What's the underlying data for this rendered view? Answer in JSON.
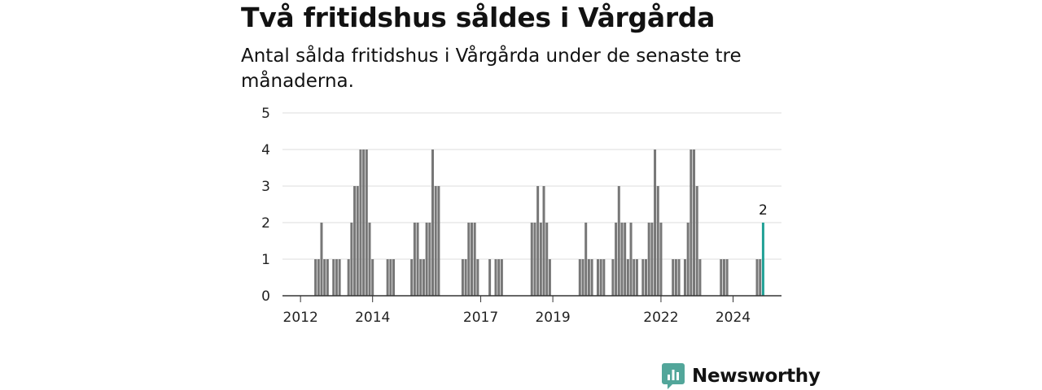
{
  "colors": {
    "bar": "#777777",
    "highlight": "#21a196",
    "grid": "#dddddd",
    "axis": "#333333",
    "brand": "#52a69a"
  },
  "brand": {
    "name": "Newsworthy",
    "icon": "newsworthy-logo-icon"
  },
  "chart_data": {
    "type": "bar",
    "title": "Två fritidshus såldes i Vårgårda",
    "subtitle": "Antal sålda fritidshus i Vårgårda under de senaste tre månaderna.",
    "xlabel": "",
    "ylabel": "",
    "ylim": [
      0,
      5
    ],
    "y_ticks": [
      "0",
      "1",
      "2",
      "3",
      "4",
      "5"
    ],
    "x_ticks": [
      {
        "label": "2012",
        "x": "2012-01"
      },
      {
        "label": "2014",
        "x": "2014-01"
      },
      {
        "label": "2017",
        "x": "2017-01"
      },
      {
        "label": "2019",
        "x": "2019-01"
      },
      {
        "label": "2022",
        "x": "2022-01"
      },
      {
        "label": "2024",
        "x": "2024-01"
      }
    ],
    "grid": true,
    "series": [
      {
        "values": [
          [
            "2012-06",
            1
          ],
          [
            "2012-07",
            1
          ],
          [
            "2012-08",
            2
          ],
          [
            "2012-09",
            1
          ],
          [
            "2012-10",
            1
          ],
          [
            "2012-12",
            1
          ],
          [
            "2013-01",
            1
          ],
          [
            "2013-02",
            1
          ],
          [
            "2013-05",
            1
          ],
          [
            "2013-06",
            2
          ],
          [
            "2013-07",
            3
          ],
          [
            "2013-08",
            3
          ],
          [
            "2013-09",
            4
          ],
          [
            "2013-10",
            4
          ],
          [
            "2013-11",
            4
          ],
          [
            "2013-12",
            2
          ],
          [
            "2014-01",
            1
          ],
          [
            "2014-06",
            1
          ],
          [
            "2014-07",
            1
          ],
          [
            "2014-08",
            1
          ],
          [
            "2015-02",
            1
          ],
          [
            "2015-03",
            2
          ],
          [
            "2015-04",
            2
          ],
          [
            "2015-05",
            1
          ],
          [
            "2015-06",
            1
          ],
          [
            "2015-07",
            2
          ],
          [
            "2015-08",
            2
          ],
          [
            "2015-09",
            4
          ],
          [
            "2015-10",
            3
          ],
          [
            "2015-11",
            3
          ],
          [
            "2016-07",
            1
          ],
          [
            "2016-08",
            1
          ],
          [
            "2016-09",
            2
          ],
          [
            "2016-10",
            2
          ],
          [
            "2016-11",
            2
          ],
          [
            "2016-12",
            1
          ],
          [
            "2017-04",
            1
          ],
          [
            "2017-06",
            1
          ],
          [
            "2017-07",
            1
          ],
          [
            "2017-08",
            1
          ],
          [
            "2018-06",
            2
          ],
          [
            "2018-07",
            2
          ],
          [
            "2018-08",
            3
          ],
          [
            "2018-09",
            2
          ],
          [
            "2018-10",
            3
          ],
          [
            "2018-11",
            2
          ],
          [
            "2018-12",
            1
          ],
          [
            "2019-10",
            1
          ],
          [
            "2019-11",
            1
          ],
          [
            "2019-12",
            2
          ],
          [
            "2020-01",
            1
          ],
          [
            "2020-02",
            1
          ],
          [
            "2020-04",
            1
          ],
          [
            "2020-05",
            1
          ],
          [
            "2020-06",
            1
          ],
          [
            "2020-09",
            1
          ],
          [
            "2020-10",
            2
          ],
          [
            "2020-11",
            3
          ],
          [
            "2020-12",
            2
          ],
          [
            "2021-01",
            2
          ],
          [
            "2021-02",
            1
          ],
          [
            "2021-03",
            2
          ],
          [
            "2021-04",
            1
          ],
          [
            "2021-05",
            1
          ],
          [
            "2021-07",
            1
          ],
          [
            "2021-08",
            1
          ],
          [
            "2021-09",
            2
          ],
          [
            "2021-10",
            2
          ],
          [
            "2021-11",
            4
          ],
          [
            "2021-12",
            3
          ],
          [
            "2022-01",
            2
          ],
          [
            "2022-05",
            1
          ],
          [
            "2022-06",
            1
          ],
          [
            "2022-07",
            1
          ],
          [
            "2022-09",
            1
          ],
          [
            "2022-10",
            2
          ],
          [
            "2022-11",
            4
          ],
          [
            "2022-12",
            4
          ],
          [
            "2023-01",
            3
          ],
          [
            "2023-02",
            1
          ],
          [
            "2023-09",
            1
          ],
          [
            "2023-10",
            1
          ],
          [
            "2023-11",
            1
          ],
          [
            "2024-09",
            1
          ],
          [
            "2024-10",
            1
          ]
        ]
      },
      {
        "highlight": true,
        "values": [
          [
            "2024-11",
            2
          ]
        ]
      }
    ],
    "annotations": [
      {
        "x": "2024-11",
        "text": "2"
      }
    ]
  }
}
